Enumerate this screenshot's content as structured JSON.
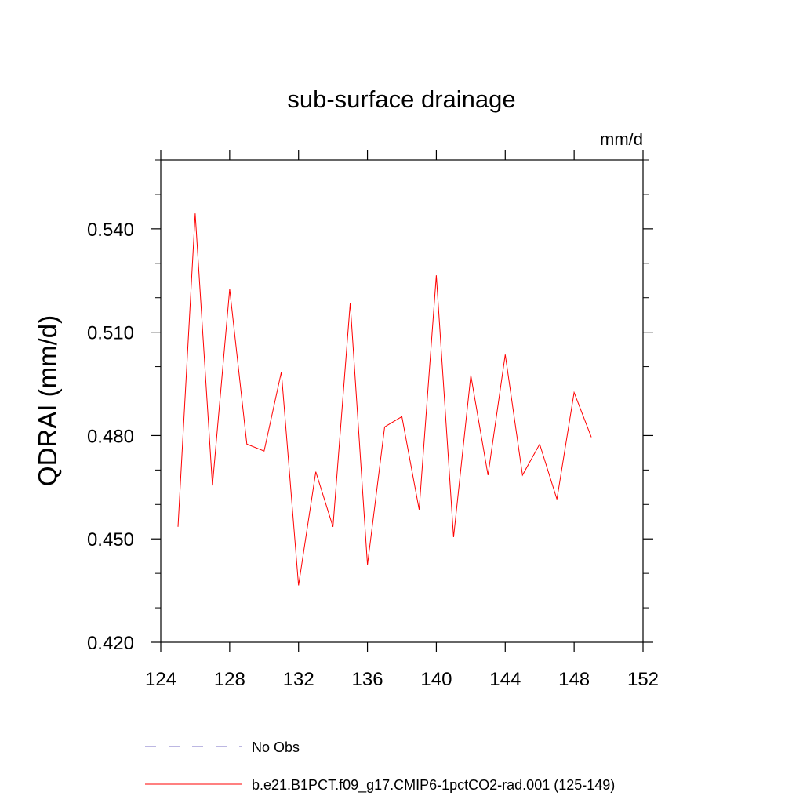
{
  "chart_data": {
    "type": "line",
    "title": "sub-surface drainage",
    "units_label": "mm/d",
    "xlabel": "",
    "ylabel": "QDRAI  (mm/d)",
    "xlim": [
      124,
      152
    ],
    "ylim": [
      0.42,
      0.56
    ],
    "xticks": [
      124,
      128,
      132,
      136,
      140,
      144,
      148,
      152
    ],
    "xtick_labels": [
      "124",
      "128",
      "132",
      "136",
      "140",
      "144",
      "148",
      "152"
    ],
    "yticks": [
      0.42,
      0.45,
      0.48,
      0.51,
      0.54
    ],
    "ytick_labels": [
      "0.420",
      "0.450",
      "0.480",
      "0.510",
      "0.540"
    ],
    "grid": false,
    "legend_position": "bottom",
    "series": [
      {
        "name": "No Obs",
        "color": "#7a6fc4",
        "dash": "dashed",
        "x": [],
        "y": []
      },
      {
        "name": "b.e21.B1PCT.f09_g17.CMIP6-1pctCO2-rad.001 (125-149)",
        "color": "#ff0000",
        "dash": "solid",
        "x": [
          125,
          126,
          127,
          128,
          129,
          130,
          131,
          132,
          133,
          134,
          135,
          136,
          137,
          138,
          139,
          140,
          141,
          142,
          143,
          144,
          145,
          146,
          147,
          148,
          149
        ],
        "y": [
          0.4535,
          0.5445,
          0.4655,
          0.5225,
          0.4775,
          0.4755,
          0.4985,
          0.4365,
          0.4695,
          0.4535,
          0.5185,
          0.4425,
          0.4825,
          0.4855,
          0.4585,
          0.5265,
          0.4505,
          0.4975,
          0.4685,
          0.5035,
          0.4685,
          0.4775,
          0.4615,
          0.4925,
          0.4795
        ]
      }
    ]
  }
}
